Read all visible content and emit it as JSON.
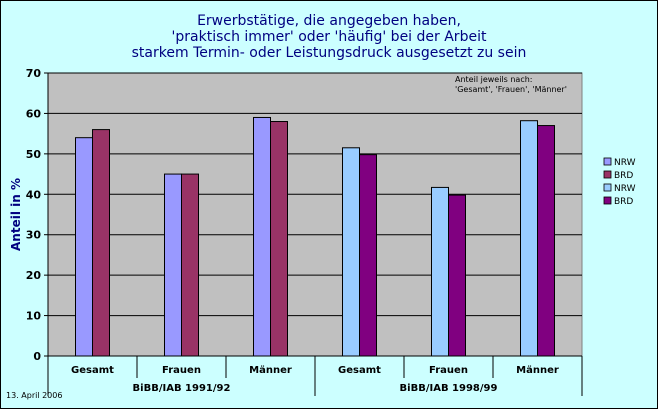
{
  "chart_data": {
    "type": "bar",
    "title_lines": [
      "Erwerbstätige, die angegeben haben,",
      "'praktisch immer' oder 'häufig' bei der Arbeit",
      "starkem Termin- oder Leistungsdruck ausgesetzt zu sein"
    ],
    "ylabel": "Anteil in %",
    "ylim": [
      0,
      70
    ],
    "yticks": [
      0,
      10,
      20,
      30,
      40,
      50,
      60,
      70
    ],
    "grid": true,
    "annotation_lines": [
      "Anteil jeweils nach:",
      "'Gesamt', 'Frauen', 'Männer'"
    ],
    "groups": [
      {
        "label": "BiBB/IAB 1991/92",
        "categories": [
          "Gesamt",
          "Frauen",
          "Männer"
        ],
        "series": [
          {
            "name": "NRW",
            "color": "#9999ff",
            "values": [
              54,
              45,
              59
            ]
          },
          {
            "name": "BRD",
            "color": "#993366",
            "values": [
              56,
              45,
              58
            ]
          }
        ]
      },
      {
        "label": "BiBB/IAB 1998/99",
        "categories": [
          "Gesamt",
          "Frauen",
          "Männer"
        ],
        "series": [
          {
            "name": "NRW",
            "color": "#99ccff",
            "values": [
              51.5,
              41.7,
              58.2
            ]
          },
          {
            "name": "BRD",
            "color": "#800080",
            "values": [
              49.8,
              39.8,
              57
            ]
          }
        ]
      }
    ],
    "legend": [
      {
        "name": "NRW",
        "color": "#9999ff"
      },
      {
        "name": "BRD",
        "color": "#993366"
      },
      {
        "name": "NRW",
        "color": "#99ccff"
      },
      {
        "name": "BRD",
        "color": "#800080"
      }
    ],
    "legend_position": "right",
    "plot_background": "#c0c0c0"
  },
  "footer": {
    "date": "13. April 2006"
  }
}
